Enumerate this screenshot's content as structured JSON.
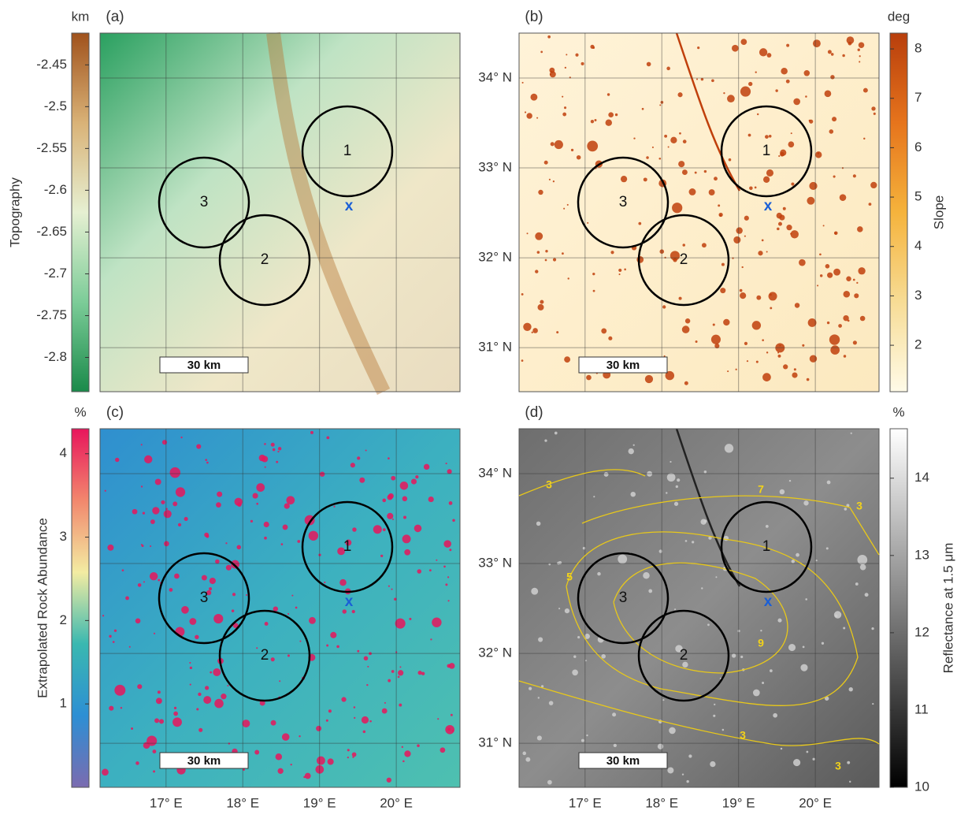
{
  "lon_ticks": [
    {
      "value": 17,
      "label": "17° E"
    },
    {
      "value": 18,
      "label": "18° E"
    },
    {
      "value": 19,
      "label": "19° E"
    },
    {
      "value": 20,
      "label": "20° E"
    }
  ],
  "lat_ticks": [
    {
      "value": 31,
      "label": "31° N"
    },
    {
      "value": 32,
      "label": "32° N"
    },
    {
      "value": 33,
      "label": "33° N"
    },
    {
      "value": 34,
      "label": "34° N"
    }
  ],
  "lon_lim": [
    16.14,
    20.83
  ],
  "lat_lim": [
    30.51,
    34.5
  ],
  "panels": [
    {
      "label": "(a)",
      "scale_bar": "30 km",
      "circles": [
        "1",
        "2",
        "3"
      ],
      "marker": "x",
      "colorbar": {
        "unit": "km",
        "label": "Topography",
        "lim": [
          -2.841,
          -2.412
        ],
        "ticks": [
          -2.8,
          -2.75,
          -2.7,
          -2.65,
          -2.6,
          -2.55,
          -2.5,
          -2.45
        ],
        "colors": [
          "#1a8a4a",
          "#7ccc98",
          "#e6f0d2",
          "#d9b277",
          "#a0521c"
        ]
      }
    },
    {
      "label": "(b)",
      "scale_bar": "30 km",
      "circles": [
        "1",
        "2",
        "3"
      ],
      "marker": "x",
      "colorbar": {
        "unit": "deg",
        "label": "Slope",
        "lim": [
          1.06,
          8.32
        ],
        "ticks": [
          2,
          3,
          4,
          5,
          6,
          7,
          8
        ],
        "colors": [
          "#fffbe8",
          "#f7dc95",
          "#f5b33c",
          "#e6741c",
          "#b83e0c"
        ]
      }
    },
    {
      "label": "(c)",
      "scale_bar": "30 km",
      "circles": [
        "1",
        "2",
        "3"
      ],
      "marker": "x",
      "colorbar": {
        "unit": "%",
        "label": "Extrapolated Rock Abundance",
        "lim": [
          0,
          4.3
        ],
        "ticks": [
          1,
          2,
          3,
          4
        ],
        "colors": [
          "#7b6bb0",
          "#2d8fd4",
          "#3ab8b0",
          "#f3eca2",
          "#f2876d",
          "#e8155c"
        ]
      }
    },
    {
      "label": "(d)",
      "scale_bar": "30 km",
      "circles": [
        "1",
        "2",
        "3"
      ],
      "marker": "x",
      "contour_labels": [
        "3",
        "7",
        "3",
        "5",
        "9",
        "3",
        "3"
      ],
      "colorbar": {
        "unit": "%",
        "label": "Reflectance at 1.5 μm",
        "lim": [
          10,
          14.64
        ],
        "ticks": [
          10,
          11,
          12,
          13,
          14
        ],
        "colors": [
          "#000000",
          "#ffffff"
        ]
      }
    }
  ]
}
